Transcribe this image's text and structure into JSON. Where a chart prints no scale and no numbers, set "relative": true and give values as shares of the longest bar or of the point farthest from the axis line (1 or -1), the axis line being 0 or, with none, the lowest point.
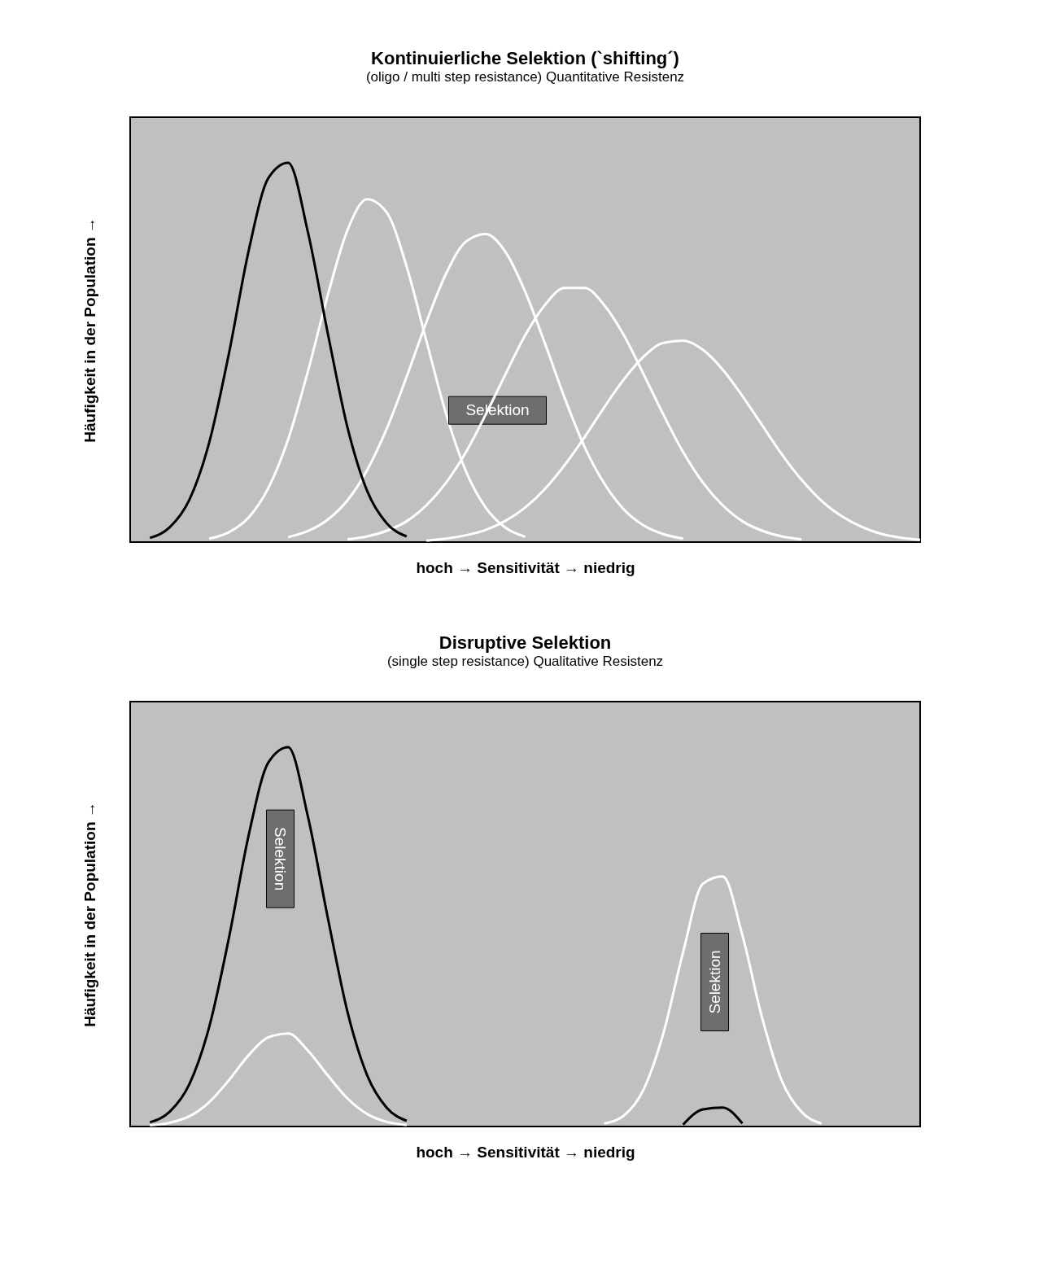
{
  "chart_data": [
    {
      "type": "line",
      "relative": true,
      "title": "Kontinuierliche Selektion (`shifting´)",
      "subtitle": "(oligo / multi step resistance) Quantitative Resistenz",
      "xlabel": "hoch → Sensitivität → niedrig",
      "ylabel": "Häufigkeit in der Population →",
      "tick_labels": false,
      "grid": false,
      "line_style": "solid",
      "annotations": [
        "Selektion"
      ],
      "categories": [
        null,
        null,
        null,
        null,
        null,
        null,
        null,
        null,
        null,
        null,
        null,
        null,
        null,
        null,
        null,
        null,
        null,
        null,
        null,
        null,
        null,
        null,
        null,
        null,
        null,
        null,
        null,
        null,
        null,
        null,
        null,
        null,
        null,
        null,
        null,
        null,
        null,
        null,
        null,
        null,
        null
      ],
      "series": [
        {
          "color": "#ffffff",
          "values": [
            null,
            null,
            null,
            null,
            0.009,
            0.026,
            0.065,
            0.143,
            0.271,
            0.45,
            0.65,
            0.822,
            0.904,
            0.868,
            0.726,
            0.53,
            0.337,
            0.187,
            0.091,
            0.038,
            0.014,
            null,
            null,
            null,
            null,
            null,
            null,
            null,
            null,
            null,
            null,
            null,
            null,
            null,
            null,
            null,
            null,
            null,
            null,
            null,
            null
          ]
        },
        {
          "color": "#ffffff",
          "values": [
            null,
            null,
            null,
            null,
            null,
            null,
            null,
            null,
            0.013,
            0.029,
            0.059,
            0.11,
            0.19,
            0.3,
            0.436,
            0.58,
            0.708,
            0.792,
            0.812,
            0.765,
            0.66,
            0.524,
            0.38,
            0.252,
            0.155,
            0.086,
            0.044,
            0.021,
            0.009,
            null,
            null,
            null,
            null,
            null,
            null,
            null,
            null,
            null,
            null,
            null,
            null
          ]
        },
        {
          "color": "#ffffff",
          "values": [
            null,
            null,
            null,
            null,
            null,
            null,
            null,
            null,
            null,
            null,
            null,
            0.007,
            0.015,
            0.03,
            0.055,
            0.097,
            0.157,
            0.237,
            0.336,
            0.442,
            0.545,
            0.625,
            0.67,
            0.67,
            0.625,
            0.545,
            0.442,
            0.336,
            0.237,
            0.157,
            0.097,
            0.055,
            0.03,
            0.015,
            0.007,
            null,
            null,
            null,
            null,
            null,
            null
          ]
        },
        {
          "color": "#ffffff",
          "values": [
            null,
            null,
            null,
            null,
            null,
            null,
            null,
            null,
            null,
            null,
            null,
            null,
            null,
            null,
            null,
            0.004,
            0.009,
            0.018,
            0.032,
            0.056,
            0.091,
            0.14,
            0.203,
            0.276,
            0.355,
            0.429,
            0.489,
            0.525,
            0.531,
            0.507,
            0.455,
            0.385,
            0.308,
            0.231,
            0.164,
            0.109,
            0.069,
            0.041,
            0.022,
            0.012,
            0.006
          ]
        },
        {
          "color": "#000000",
          "values": [
            null,
            0.011,
            0.039,
            0.112,
            0.262,
            0.497,
            0.768,
            0.96,
            1.0,
            0.817,
            0.552,
            0.303,
            0.135,
            0.049,
            0.015,
            null,
            null,
            null,
            null,
            null,
            null,
            null,
            null,
            null,
            null,
            null,
            null,
            null,
            null,
            null,
            null,
            null,
            null,
            null,
            null,
            null,
            null,
            null,
            null,
            null,
            null
          ]
        }
      ]
    },
    {
      "type": "line",
      "relative": true,
      "title": "Disruptive Selektion",
      "subtitle": "(single step resistance) Qualitative Resistenz",
      "xlabel": "hoch → Sensitivität → niedrig",
      "ylabel": "Häufigkeit in der Population →",
      "tick_labels": false,
      "grid": false,
      "line_style": "solid",
      "annotations": [
        "Selektion",
        "Selektion"
      ],
      "categories": [
        null,
        null,
        null,
        null,
        null,
        null,
        null,
        null,
        null,
        null,
        null,
        null,
        null,
        null,
        null,
        null,
        null,
        null,
        null,
        null,
        null,
        null,
        null,
        null,
        null,
        null,
        null,
        null,
        null,
        null,
        null,
        null,
        null,
        null,
        null,
        null,
        null,
        null,
        null,
        null,
        null
      ],
      "series": [
        {
          "color": "#000000",
          "values": [
            null,
            0.011,
            0.039,
            0.112,
            0.262,
            0.497,
            0.768,
            0.96,
            1.0,
            0.817,
            0.552,
            0.303,
            0.135,
            0.049,
            0.015,
            null,
            null,
            null,
            null,
            null,
            null,
            null,
            null,
            null,
            null,
            null,
            null,
            null,
            null,
            null,
            null,
            null,
            null,
            null,
            null,
            null,
            null,
            null,
            null,
            null,
            null
          ]
        },
        {
          "color": "#ffffff",
          "values": [
            null,
            0.003,
            0.01,
            0.027,
            0.064,
            0.122,
            0.188,
            0.235,
            0.245,
            0.2,
            0.135,
            0.074,
            0.033,
            0.012,
            0.004,
            null,
            null,
            null,
            null,
            null,
            null,
            null,
            null,
            null,
            null,
            null,
            null,
            null,
            null,
            null,
            null,
            null,
            null,
            null,
            null,
            null,
            null,
            null,
            null,
            null,
            null
          ]
        },
        {
          "color": "#ffffff",
          "values": [
            null,
            null,
            null,
            null,
            null,
            null,
            null,
            null,
            null,
            null,
            null,
            null,
            null,
            null,
            null,
            null,
            null,
            null,
            null,
            null,
            null,
            null,
            null,
            null,
            0.008,
            0.029,
            0.098,
            0.246,
            0.46,
            0.64,
            0.659,
            0.504,
            0.286,
            0.12,
            0.038,
            0.008,
            null,
            null,
            null,
            null,
            null
          ]
        },
        {
          "color": "#000000",
          "values": [
            null,
            null,
            null,
            null,
            null,
            null,
            null,
            null,
            null,
            null,
            null,
            null,
            null,
            null,
            null,
            null,
            null,
            null,
            null,
            null,
            null,
            null,
            null,
            null,
            null,
            null,
            null,
            null,
            0.005,
            0.045,
            0.05,
            0.008,
            null,
            null,
            null,
            null,
            null,
            null,
            null,
            null,
            null
          ]
        }
      ]
    }
  ]
}
